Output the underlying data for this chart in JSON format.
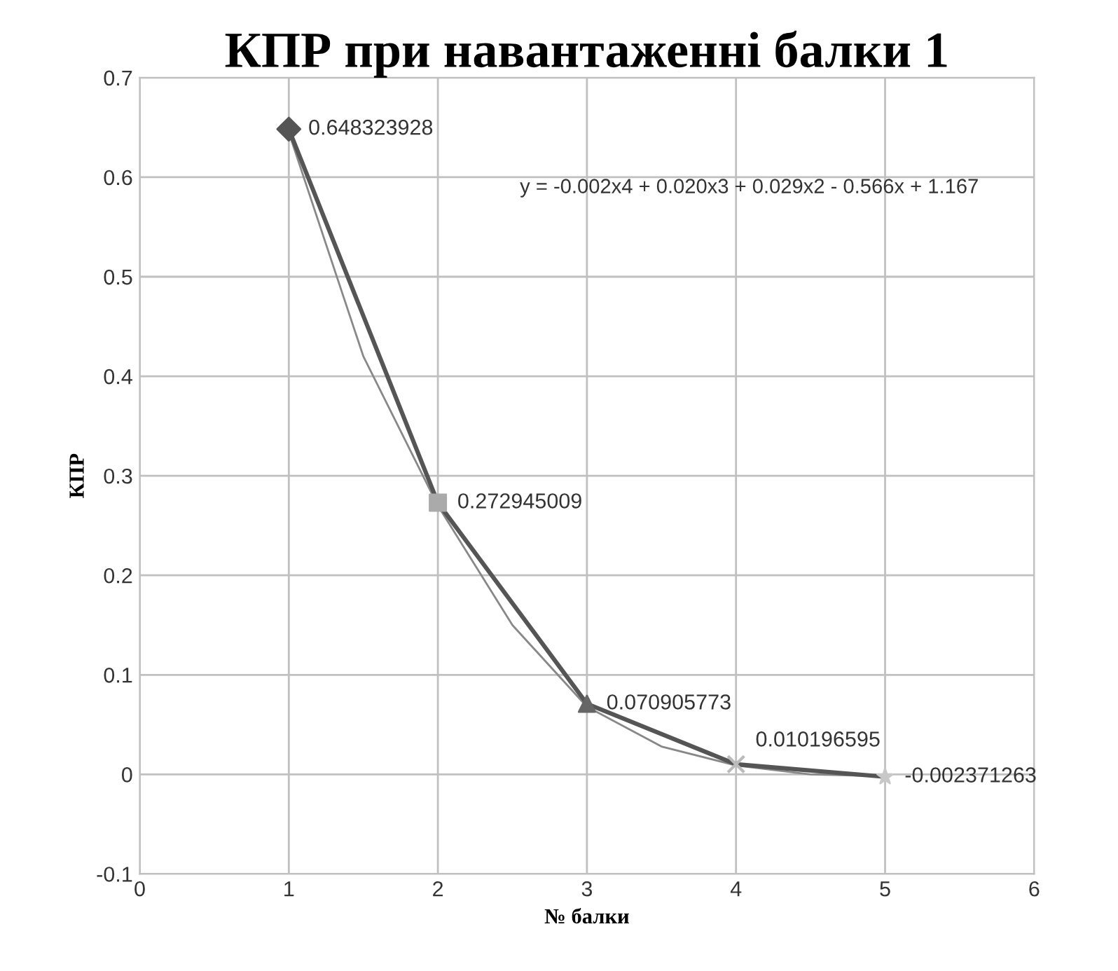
{
  "chart_data": {
    "type": "line",
    "title": "КПР при навантаженні балки 1",
    "xlabel": "№ балки",
    "ylabel": "КПР",
    "xlim": [
      0,
      6
    ],
    "xticks": [
      0,
      1,
      2,
      3,
      4,
      5,
      6
    ],
    "ylim": [
      -0.1,
      0.7
    ],
    "yticks": [
      -0.1,
      0,
      0.1,
      0.2,
      0.3,
      0.4,
      0.5,
      0.6,
      0.7
    ],
    "grid": true,
    "line_style": "solid",
    "series": [
      {
        "color": "#555555",
        "x": [
          1,
          2,
          3,
          4,
          5
        ],
        "values": [
          0.648323928,
          0.272945009,
          0.070905773,
          0.010196595,
          -0.002371263
        ],
        "colors": [
          "#555555",
          "#aaaaaa",
          "#666666",
          "#bbbbbb",
          "#c8c8c8"
        ],
        "marker": [
          "diamond",
          "square",
          "triangle",
          "cross",
          "star"
        ],
        "value_labels": [
          "0.648323928",
          "0.272945009",
          "0.070905773",
          "0.010196595",
          "-0.002371263"
        ]
      },
      {
        "color": "#888888",
        "x": [
          1,
          1.5,
          2,
          2.5,
          3,
          3.5,
          4,
          4.5,
          5
        ],
        "values": [
          0.645,
          0.42,
          0.27,
          0.15,
          0.068,
          0.028,
          0.009,
          0.0,
          -0.002
        ],
        "marker": "none"
      }
    ],
    "annotations": [
      "y = -0.002x4 + 0.020x3 + 0.029x2 - 0.566x + 1.167"
    ]
  }
}
